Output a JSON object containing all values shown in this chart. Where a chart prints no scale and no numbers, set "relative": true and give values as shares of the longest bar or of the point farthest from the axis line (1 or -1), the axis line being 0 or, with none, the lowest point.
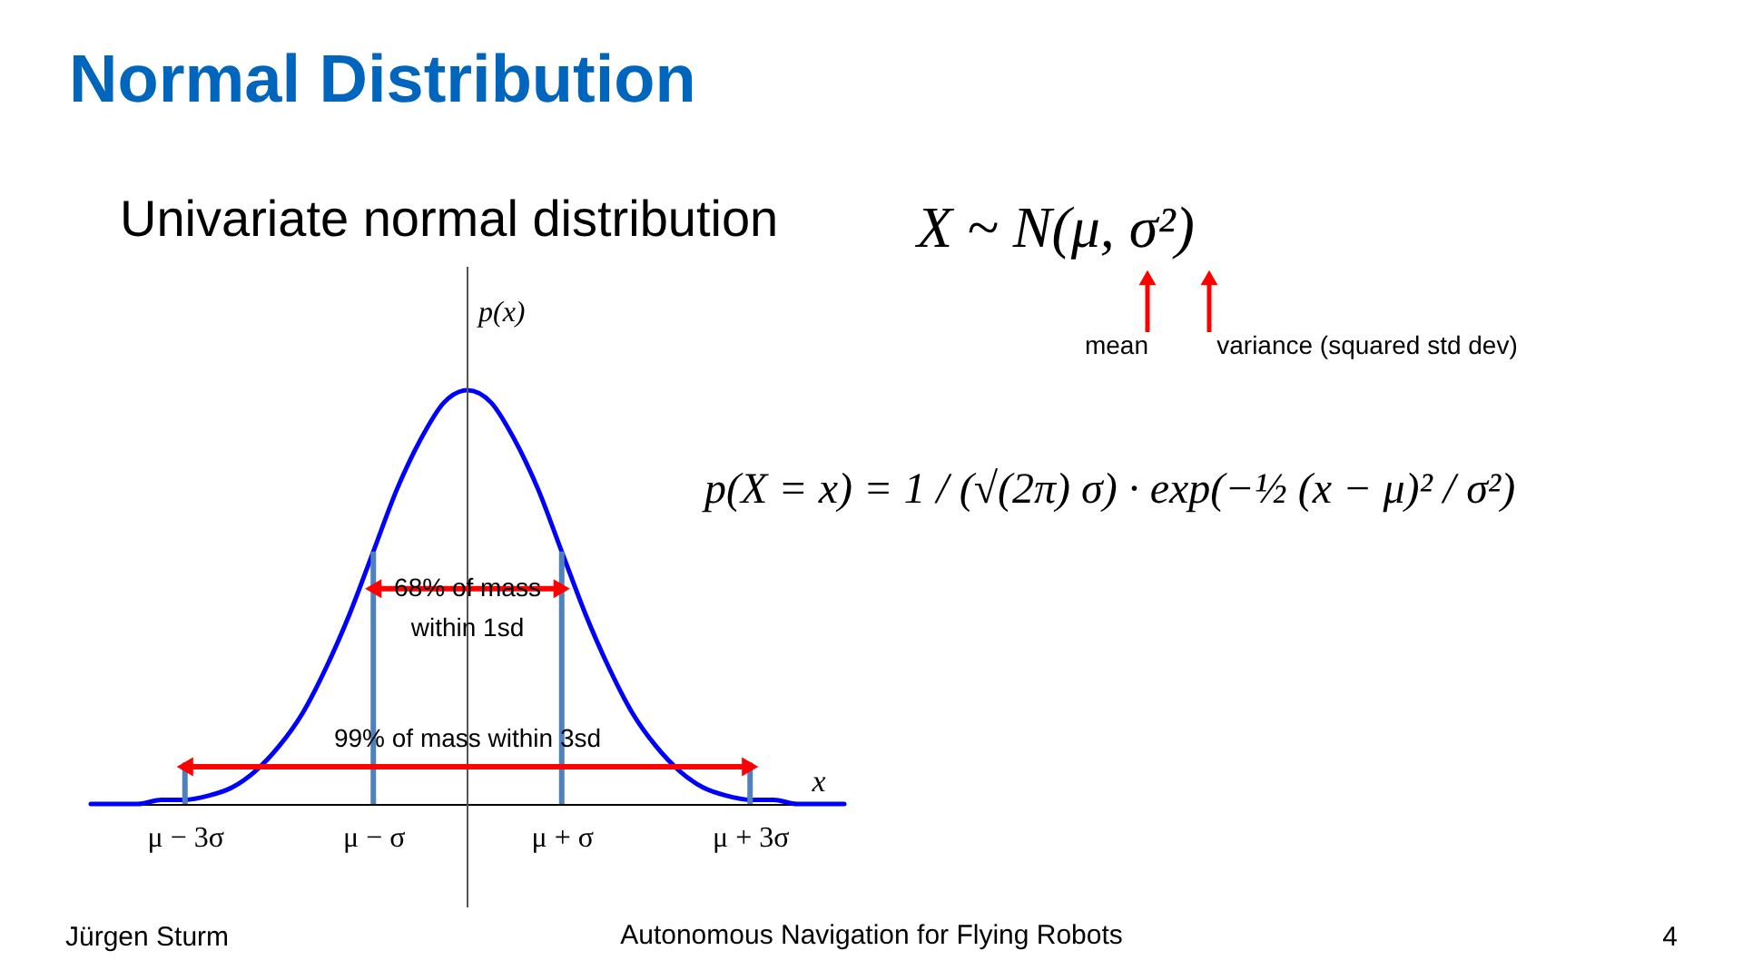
{
  "chart_data": {
    "type": "line",
    "title": "Normal Distribution",
    "subtitle": "Univariate normal distribution",
    "xlabel": "x",
    "ylabel": "p(x)",
    "relative": true,
    "x": [
      -4,
      -3.75,
      -3.5,
      -3.25,
      -3,
      -2.75,
      -2.5,
      -2.25,
      -2,
      -1.75,
      -1.5,
      -1.25,
      -1,
      -0.75,
      -0.5,
      -0.25,
      0,
      0.25,
      0.5,
      0.75,
      1,
      1.25,
      1.5,
      1.75,
      2,
      2.25,
      2.5,
      2.75,
      3,
      3.25,
      3.5,
      3.75,
      4
    ],
    "series": [
      {
        "color": "#0000ff",
        "values": [
          0.0,
          0.0,
          0.0,
          0.01,
          0.01,
          0.02,
          0.04,
          0.08,
          0.14,
          0.22,
          0.33,
          0.46,
          0.61,
          0.76,
          0.88,
          0.97,
          1.0,
          0.97,
          0.88,
          0.76,
          0.61,
          0.46,
          0.33,
          0.22,
          0.14,
          0.08,
          0.04,
          0.02,
          0.01,
          0.01,
          0.0,
          0.0,
          0.0
        ]
      }
    ],
    "xlim": [
      -4,
      4
    ],
    "xticks": [
      {
        "value": -3,
        "label": "μ − 3σ"
      },
      {
        "value": -1,
        "label": "μ − σ"
      },
      {
        "value": 1,
        "label": "μ + σ"
      },
      {
        "value": 3,
        "label": "μ + 3σ"
      }
    ],
    "ref_lines": [
      {
        "axis": "x",
        "value": -1,
        "color": "#4f81bd"
      },
      {
        "axis": "x",
        "value": 1,
        "color": "#4f81bd"
      },
      {
        "axis": "x",
        "value": -3,
        "color": "#4f81bd"
      },
      {
        "axis": "x",
        "value": 3,
        "color": "#4f81bd"
      }
    ],
    "annotations": [
      "68% of mass\nwithin 1sd",
      "99% of mass within 3sd",
      "X ~ N(μ, σ²)",
      "mean",
      "variance (squared std dev)",
      "p(X = x) = 1 / (√(2π) σ) · exp(−½ (x − μ)² / σ²)",
      "Jürgen Sturm",
      "Autonomous Navigation for Flying Robots",
      "4"
    ],
    "grid": false,
    "legend": false,
    "marker": "none",
    "line_style": "solid"
  }
}
